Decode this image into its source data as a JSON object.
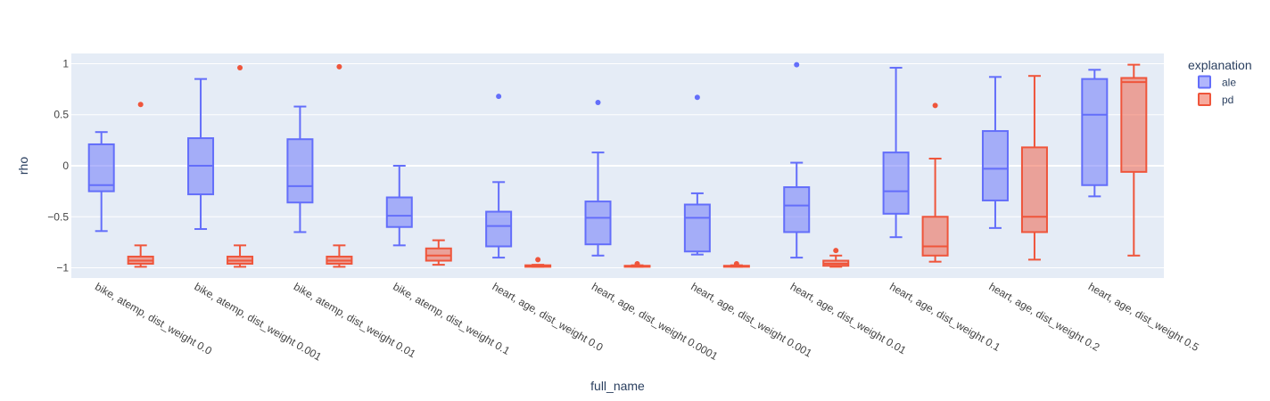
{
  "chart_data": {
    "type": "box",
    "xlabel": "full_name",
    "ylabel": "rho",
    "ylim": [
      -1.1,
      1.1
    ],
    "yticks": [
      1,
      0.5,
      0,
      -0.5,
      -1
    ],
    "ytick_labels": [
      "1",
      "0.5",
      "0",
      "−0.5",
      "−1"
    ],
    "grid": true,
    "legend_title": "explanation",
    "legend_position": "top-right",
    "categories": [
      "bike, atemp, dist_weight 0.0",
      "bike, atemp, dist_weight 0.001",
      "bike, atemp, dist_weight 0.01",
      "bike, atemp, dist_weight 0.1",
      "heart, age, dist_weight 0.0",
      "heart, age, dist_weight 0.0001",
      "heart, age, dist_weight 0.001",
      "heart, age, dist_weight 0.01",
      "heart, age, dist_weight 0.1",
      "heart, age, dist_weight 0.2",
      "heart, age, dist_weight 0.5"
    ],
    "series": [
      {
        "name": "ale",
        "color": "#636efa",
        "boxes": [
          {
            "lowerfence": -0.64,
            "q1": -0.25,
            "median": -0.19,
            "q3": 0.21,
            "upperfence": 0.33,
            "outliers": []
          },
          {
            "lowerfence": -0.62,
            "q1": -0.28,
            "median": 0.0,
            "q3": 0.27,
            "upperfence": 0.85,
            "outliers": []
          },
          {
            "lowerfence": -0.65,
            "q1": -0.36,
            "median": -0.2,
            "q3": 0.26,
            "upperfence": 0.58,
            "outliers": []
          },
          {
            "lowerfence": -0.78,
            "q1": -0.6,
            "median": -0.49,
            "q3": -0.31,
            "upperfence": 0.0,
            "outliers": []
          },
          {
            "lowerfence": -0.9,
            "q1": -0.79,
            "median": -0.59,
            "q3": -0.45,
            "upperfence": -0.16,
            "outliers": [
              0.68
            ]
          },
          {
            "lowerfence": -0.88,
            "q1": -0.77,
            "median": -0.51,
            "q3": -0.35,
            "upperfence": 0.13,
            "outliers": [
              0.62
            ]
          },
          {
            "lowerfence": -0.87,
            "q1": -0.84,
            "median": -0.51,
            "q3": -0.38,
            "upperfence": -0.27,
            "outliers": [
              0.67
            ]
          },
          {
            "lowerfence": -0.9,
            "q1": -0.65,
            "median": -0.39,
            "q3": -0.21,
            "upperfence": 0.03,
            "outliers": [
              0.99
            ]
          },
          {
            "lowerfence": -0.7,
            "q1": -0.47,
            "median": -0.25,
            "q3": 0.13,
            "upperfence": 0.96,
            "outliers": []
          },
          {
            "lowerfence": -0.61,
            "q1": -0.34,
            "median": -0.03,
            "q3": 0.34,
            "upperfence": 0.87,
            "outliers": []
          },
          {
            "lowerfence": -0.3,
            "q1": -0.19,
            "median": 0.5,
            "q3": 0.85,
            "upperfence": 0.94,
            "outliers": []
          }
        ]
      },
      {
        "name": "pd",
        "color": "#ef553b",
        "boxes": [
          {
            "lowerfence": -0.99,
            "q1": -0.96,
            "median": -0.93,
            "q3": -0.89,
            "upperfence": -0.78,
            "outliers": [
              0.6
            ]
          },
          {
            "lowerfence": -0.99,
            "q1": -0.96,
            "median": -0.93,
            "q3": -0.89,
            "upperfence": -0.78,
            "outliers": [
              0.96
            ]
          },
          {
            "lowerfence": -0.99,
            "q1": -0.96,
            "median": -0.93,
            "q3": -0.89,
            "upperfence": -0.78,
            "outliers": [
              0.97
            ]
          },
          {
            "lowerfence": -0.97,
            "q1": -0.93,
            "median": -0.88,
            "q3": -0.81,
            "upperfence": -0.73,
            "outliers": []
          },
          {
            "lowerfence": -0.99,
            "q1": -0.99,
            "median": -0.985,
            "q3": -0.975,
            "upperfence": -0.97,
            "outliers": [
              -0.92
            ]
          },
          {
            "lowerfence": -0.99,
            "q1": -0.99,
            "median": -0.985,
            "q3": -0.98,
            "upperfence": -0.975,
            "outliers": [
              -0.96
            ]
          },
          {
            "lowerfence": -0.99,
            "q1": -0.99,
            "median": -0.985,
            "q3": -0.98,
            "upperfence": -0.975,
            "outliers": [
              -0.96
            ]
          },
          {
            "lowerfence": -0.99,
            "q1": -0.98,
            "median": -0.96,
            "q3": -0.93,
            "upperfence": -0.88,
            "outliers": [
              -0.83
            ]
          },
          {
            "lowerfence": -0.94,
            "q1": -0.88,
            "median": -0.79,
            "q3": -0.5,
            "upperfence": 0.07,
            "outliers": [
              0.59
            ]
          },
          {
            "lowerfence": -0.92,
            "q1": -0.65,
            "median": -0.5,
            "q3": 0.18,
            "upperfence": 0.88,
            "outliers": []
          },
          {
            "lowerfence": -0.88,
            "q1": -0.06,
            "median": 0.82,
            "q3": 0.86,
            "upperfence": 0.99,
            "outliers": []
          }
        ]
      }
    ]
  }
}
